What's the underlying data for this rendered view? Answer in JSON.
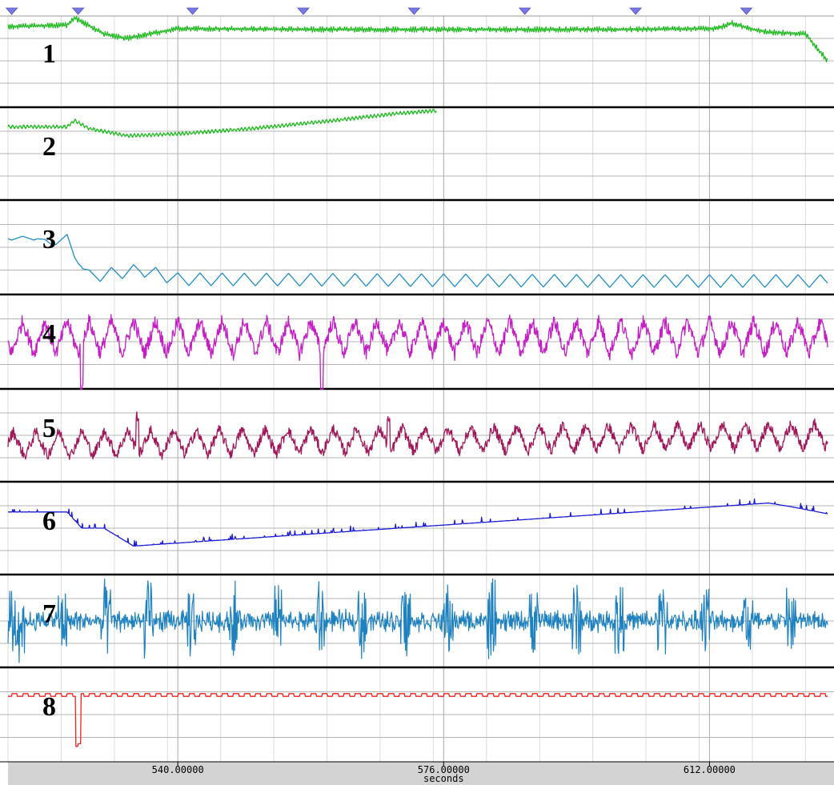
{
  "chart_data": {
    "type": "line",
    "x_axis": {
      "xlabel": "seconds",
      "range": [
        517,
        628
      ],
      "tick_labels": [
        "540.00000",
        "576.00000",
        "612.00000"
      ],
      "tick_values": [
        540,
        576,
        612
      ],
      "minor_step": 7.2
    },
    "event_markers": [
      517.5,
      526.5,
      542,
      557,
      572,
      587,
      602,
      617
    ],
    "colors": {
      "ch1": "#22bb22",
      "ch2": "#22bb22",
      "ch3": "#1e8cc8",
      "ch4": "#c41ec4",
      "ch5": "#a0185a",
      "ch6": "#1c1cd6",
      "ch7": "#1e82c0",
      "ch8": "#ee2020",
      "marker": "#7878e6",
      "axis_band": "#d3d3d3"
    },
    "channels": [
      {
        "name": "1",
        "label": "1",
        "x": [
          517,
          525,
          526,
          530,
          533,
          540,
          560,
          580,
          600,
          613,
          615,
          618,
          620,
          625,
          627,
          628
        ],
        "y": [
          0.88,
          0.9,
          0.98,
          0.8,
          0.75,
          0.86,
          0.85,
          0.85,
          0.85,
          0.86,
          0.92,
          0.85,
          0.82,
          0.8,
          0.6,
          0.5
        ],
        "ripple": 0.03,
        "ripple_period": 0.3
      },
      {
        "name": "2",
        "label": "2",
        "x": [
          517,
          525,
          526,
          528,
          533,
          540,
          550,
          560,
          570,
          575
        ],
        "y": [
          0.8,
          0.8,
          0.87,
          0.78,
          0.7,
          0.72,
          0.78,
          0.86,
          0.95,
          0.98
        ],
        "ripple": 0.02,
        "ripple_period": 0.5
      },
      {
        "name": "3",
        "label": "3",
        "x": [
          517,
          521,
          523,
          525,
          526,
          528,
          535,
          540,
          600,
          628
        ],
        "y": [
          0.6,
          0.6,
          0.53,
          0.62,
          0.4,
          0.18,
          0.25,
          0.15,
          0.13,
          0.13
        ],
        "osc_amp": 0.07,
        "osc_period": 3.0,
        "osc_start": 527
      },
      {
        "name": "4",
        "label": "4",
        "x": [
          517,
          628
        ],
        "y": [
          0.55,
          0.55
        ],
        "osc_amp": 0.18,
        "osc_period": 3.0,
        "noise": 0.08,
        "spikes": [
          [
            527,
            -0.55
          ],
          [
            559.5,
            -0.55
          ]
        ]
      },
      {
        "name": "5",
        "label": "5",
        "x": [
          517,
          628
        ],
        "y": [
          0.4,
          0.5
        ],
        "osc_amp": 0.14,
        "osc_period": 3.1,
        "noise": 0.06,
        "spikes": [
          [
            534.5,
            0.4
          ],
          [
            568.5,
            0.3
          ]
        ]
      },
      {
        "name": "6",
        "label": "6",
        "x": [
          517,
          525,
          527,
          530,
          534,
          620,
          623,
          628
        ],
        "y": [
          0.68,
          0.68,
          0.5,
          0.5,
          0.3,
          0.78,
          0.74,
          0.66
        ],
        "spiky": 0.06
      },
      {
        "name": "7",
        "label": "7",
        "x": [
          517,
          628
        ],
        "y": [
          0.5,
          0.5
        ],
        "burst_amp": 0.42,
        "burst_period": 5.8,
        "noise": 0.06
      },
      {
        "name": "8",
        "label": "8",
        "x": [
          517,
          628
        ],
        "y": [
          0.7,
          0.7
        ],
        "pulse_period": 1.5,
        "pulse_height": 0.03,
        "dip_at": 526.5,
        "dip_depth": 0.55
      }
    ]
  }
}
